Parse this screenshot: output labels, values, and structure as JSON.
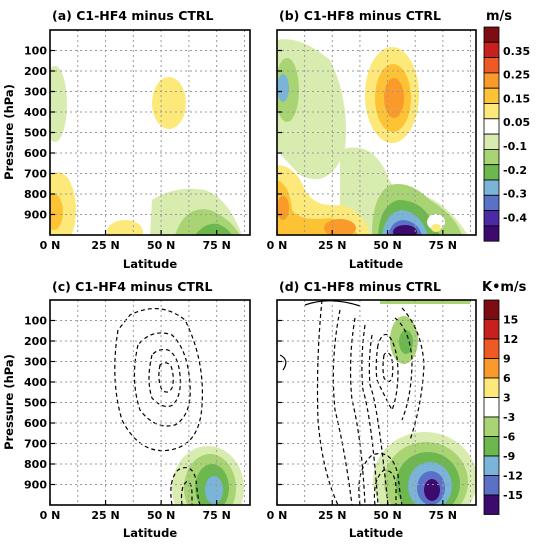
{
  "figure": {
    "colorbar_top": {
      "unit": "m/s",
      "labels": [
        "0.35",
        "0.25",
        "0.15",
        "0.05",
        "-0.1",
        "-0.2",
        "-0.3",
        "-0.4"
      ],
      "colors": [
        "#7b0d13",
        "#c8201e",
        "#ee5a24",
        "#f99a2a",
        "#fdc334",
        "#fde97a",
        "#ffffff",
        "#d9ecb0",
        "#a9d474",
        "#6cb84f",
        "#7ab4d8",
        "#5b71c7",
        "#4b2aa6",
        "#3d0a6e"
      ]
    },
    "colorbar_bottom": {
      "unit": "K•m/s",
      "labels": [
        "15",
        "12",
        "9",
        "6",
        "3",
        "-3",
        "-6",
        "-9",
        "-12",
        "-15"
      ],
      "colors": [
        "#7b0d13",
        "#c8201e",
        "#ee5a24",
        "#f99a2a",
        "#fde97a",
        "#ffffff",
        "#a9d474",
        "#6cb84f",
        "#7ab4d8",
        "#5b71c7",
        "#3d0a6e"
      ]
    }
  },
  "chart_data": [
    {
      "type": "heatmap",
      "panel": "a",
      "title": "(a) C1-HF4 minus CTRL",
      "xlabel": "Latitude",
      "ylabel": "Pressure (hPa)",
      "xlim": [
        0,
        90
      ],
      "ylim": [
        1000,
        0
      ],
      "xticks": [
        "0 N",
        "25 N",
        "50 N",
        "75 N"
      ],
      "xtick_values": [
        0,
        25,
        50,
        75
      ],
      "yticks": [
        "100",
        "200",
        "300",
        "400",
        "500",
        "600",
        "700",
        "800",
        "900"
      ],
      "ytick_values": [
        100,
        200,
        300,
        400,
        500,
        600,
        700,
        800,
        900
      ],
      "grid": true,
      "features": [
        {
          "lat": 2,
          "p": 320,
          "value": -0.08
        },
        {
          "lat": 2,
          "p": 870,
          "value": 0.12
        },
        {
          "lat": 10,
          "p": 940,
          "value": 0.05
        },
        {
          "lat": 32,
          "p": 960,
          "value": 0.06
        },
        {
          "lat": 52,
          "p": 320,
          "value": 0.07
        },
        {
          "lat": 58,
          "p": 880,
          "value": -0.15
        },
        {
          "lat": 67,
          "p": 930,
          "value": -0.2
        }
      ]
    },
    {
      "type": "heatmap",
      "panel": "b",
      "title": "(b) C1-HF8 minus CTRL",
      "xlabel": "Latitude",
      "xlim": [
        0,
        90
      ],
      "ylim": [
        1000,
        0
      ],
      "xticks": [
        "0 N",
        "25 N",
        "50 N",
        "75 N"
      ],
      "xtick_values": [
        0,
        25,
        50,
        75
      ],
      "grid": true,
      "features": [
        {
          "lat": 2,
          "p": 300,
          "value": -0.25
        },
        {
          "lat": 5,
          "p": 860,
          "value": 0.2
        },
        {
          "lat": 30,
          "p": 950,
          "value": 0.25
        },
        {
          "lat": 52,
          "p": 330,
          "value": 0.2
        },
        {
          "lat": 60,
          "p": 960,
          "value": -0.4
        },
        {
          "lat": 72,
          "p": 950,
          "value": 0.08
        },
        {
          "lat": 42,
          "p": 700,
          "value": -0.12
        }
      ]
    },
    {
      "type": "heatmap",
      "panel": "c",
      "title": "(c) C1-HF4 minus CTRL",
      "xlabel": "Latitude",
      "ylabel": "Pressure (hPa)",
      "xlim": [
        0,
        90
      ],
      "ylim": [
        1000,
        0
      ],
      "xticks": [
        "0 N",
        "25 N",
        "50 N",
        "75 N"
      ],
      "xtick_values": [
        0,
        25,
        50,
        75
      ],
      "yticks": [
        "100",
        "200",
        "300",
        "400",
        "500",
        "600",
        "700",
        "800",
        "900"
      ],
      "ytick_values": [
        100,
        200,
        300,
        400,
        500,
        600,
        700,
        800,
        900
      ],
      "grid": true,
      "features": [
        {
          "lat": 68,
          "p": 880,
          "value": -12
        },
        {
          "lat": 50,
          "p": 370,
          "contour": "negative"
        }
      ]
    },
    {
      "type": "heatmap",
      "panel": "d",
      "title": "(d) C1-HF8 minus CTRL",
      "xlabel": "Latitude",
      "xlim": [
        0,
        90
      ],
      "ylim": [
        1000,
        0
      ],
      "xticks": [
        "0 N",
        "25 N",
        "50 N",
        "75 N"
      ],
      "xtick_values": [
        0,
        25,
        50,
        75
      ],
      "grid": true,
      "features": [
        {
          "lat": 70,
          "p": 890,
          "value": -15
        },
        {
          "lat": 56,
          "p": 240,
          "value": -6
        },
        {
          "lat": 50,
          "p": 370,
          "contour": "negative"
        }
      ]
    }
  ]
}
